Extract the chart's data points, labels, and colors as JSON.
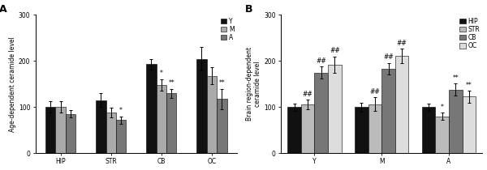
{
  "panel_A": {
    "title": "A",
    "ylabel": "Age-dependent ceramide level",
    "groups": [
      "HIP",
      "STR",
      "CB",
      "OC"
    ],
    "series": [
      "Y",
      "M",
      "A"
    ],
    "bar_colors": [
      "#111111",
      "#aaaaaa",
      "#777777"
    ],
    "values": [
      [
        100,
        101,
        85
      ],
      [
        115,
        88,
        72
      ],
      [
        193,
        148,
        130
      ],
      [
        205,
        168,
        118
      ]
    ],
    "errors": [
      [
        12,
        12,
        8
      ],
      [
        15,
        10,
        8
      ],
      [
        12,
        13,
        10
      ],
      [
        25,
        18,
        22
      ]
    ],
    "annotations": {
      "HIP": {
        "Y": "",
        "M": "",
        "A": ""
      },
      "STR": {
        "Y": "",
        "M": "",
        "A": "*"
      },
      "CB": {
        "Y": "",
        "M": "*",
        "A": "**"
      },
      "OC": {
        "Y": "",
        "M": "",
        "A": "**"
      }
    },
    "ylim": [
      0,
      300
    ],
    "yticks": [
      0,
      100,
      200,
      300
    ]
  },
  "panel_B": {
    "title": "B",
    "ylabel": "Brain region-dependent\nceramide level",
    "groups": [
      "Y",
      "M",
      "A"
    ],
    "series": [
      "HIP",
      "STR",
      "CB",
      "OC"
    ],
    "bar_colors": [
      "#111111",
      "#bbbbbb",
      "#777777",
      "#dddddd"
    ],
    "values": [
      [
        100,
        106,
        175,
        192
      ],
      [
        100,
        106,
        183,
        211
      ],
      [
        100,
        80,
        138,
        123
      ]
    ],
    "errors": [
      [
        8,
        10,
        13,
        18
      ],
      [
        10,
        15,
        13,
        16
      ],
      [
        8,
        8,
        13,
        13
      ]
    ],
    "annotations": {
      "Y": {
        "HIP": "",
        "STR": "##",
        "CB": "##",
        "OC": "##"
      },
      "M": {
        "HIP": "",
        "STR": "##",
        "CB": "##",
        "OC": "##"
      },
      "A": {
        "HIP": "",
        "STR": "*",
        "CB": "**",
        "OC": "**"
      }
    },
    "ylim": [
      0,
      300
    ],
    "yticks": [
      0,
      100,
      200,
      300
    ]
  },
  "bar_width": 0.2,
  "fontsize_label": 5.5,
  "fontsize_tick": 5.5,
  "fontsize_title": 9,
  "fontsize_legend": 5.5,
  "fontsize_annot": 5.5
}
